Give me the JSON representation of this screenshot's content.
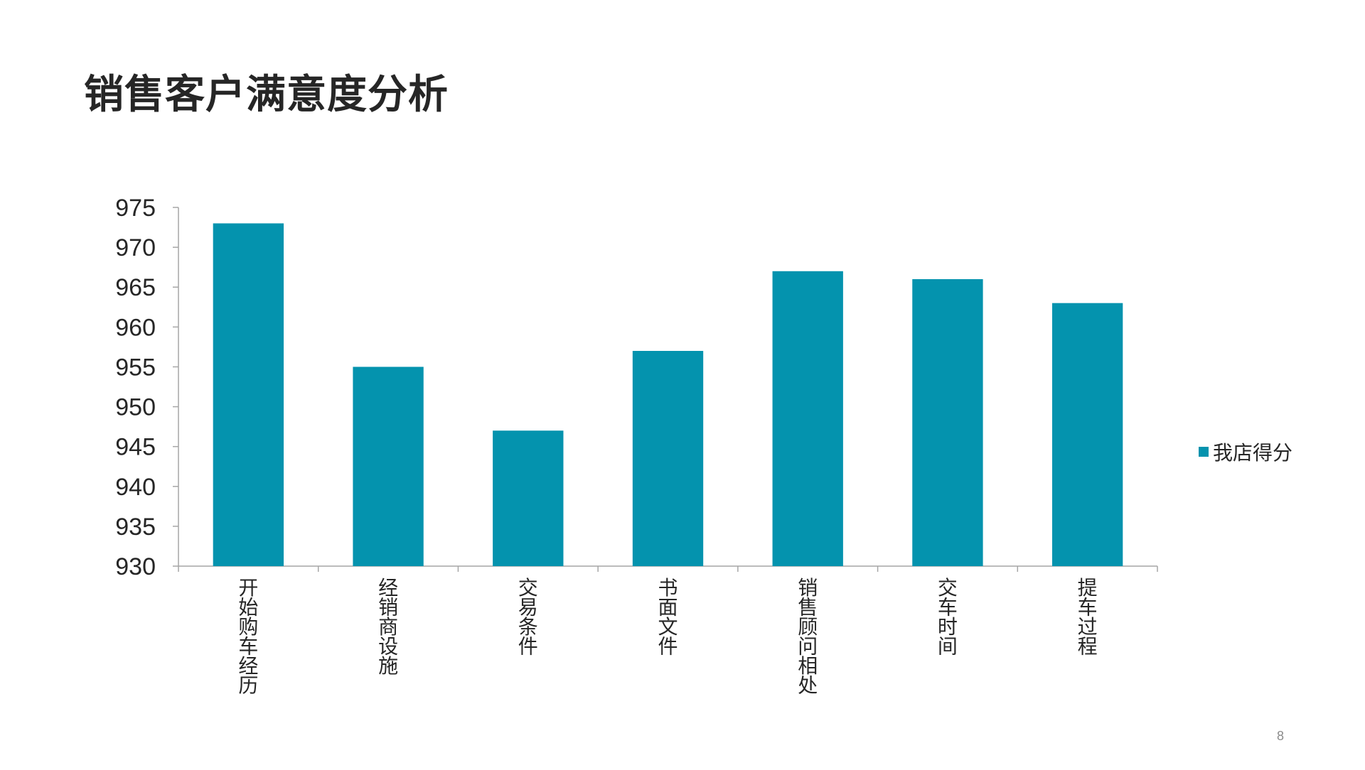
{
  "slide": {
    "title": "销售客户满意度分析",
    "page_number": "8"
  },
  "colors": {
    "bar": "#0493AE",
    "axis": "#a6a6a6",
    "text": "#262626"
  },
  "chart_data": {
    "type": "bar",
    "categories": [
      "开始购车经历",
      "经销商设施",
      "交易条件",
      "书面文件",
      "销售顾问相处",
      "交车时间",
      "提车过程"
    ],
    "series": [
      {
        "name": "我店得分",
        "values": [
          973,
          955,
          947,
          957,
          967,
          966,
          963
        ]
      }
    ],
    "ylim": [
      930,
      975
    ],
    "yticks": [
      "930",
      "935",
      "940",
      "945",
      "950",
      "955",
      "960",
      "965",
      "970",
      "975"
    ],
    "grid": false,
    "legend_position": "right",
    "xlabel": "",
    "ylabel": ""
  }
}
